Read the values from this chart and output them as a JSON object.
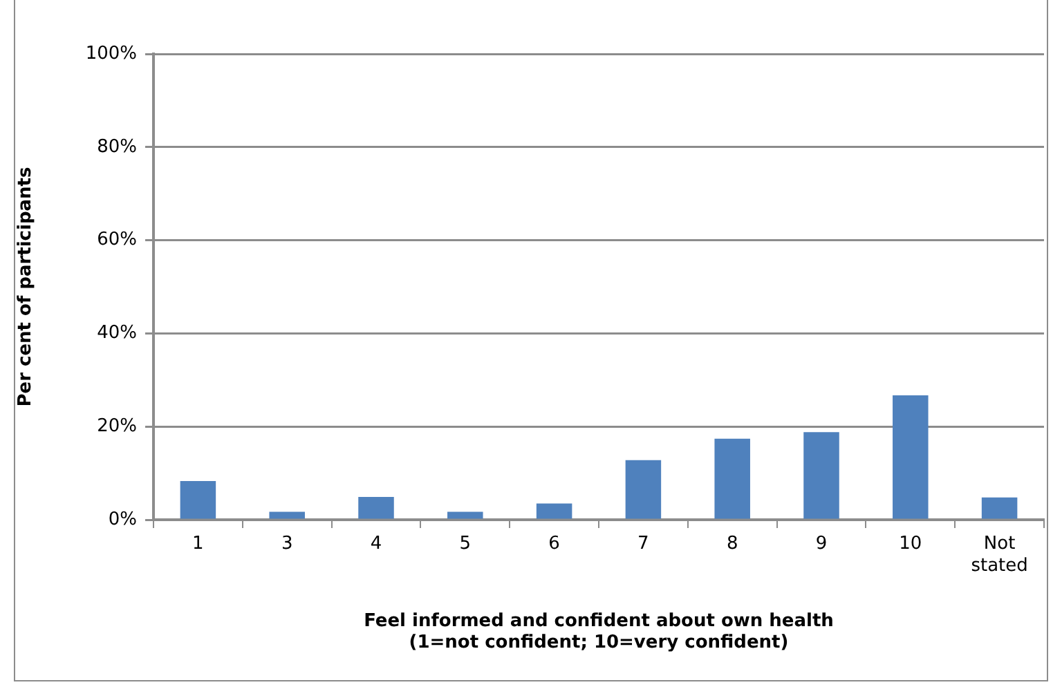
{
  "chart_data": {
    "type": "bar",
    "xlabel": "Feel informed and confident about own health\n(1=not confident; 10=very confident)",
    "ylabel": "Per cent of participants",
    "categories": [
      "1",
      "3",
      "4",
      "5",
      "6",
      "7",
      "8",
      "9",
      "10",
      "Not stated"
    ],
    "values": [
      8.3,
      1.7,
      4.9,
      1.7,
      3.5,
      12.8,
      17.4,
      18.8,
      26.7,
      4.8
    ],
    "color": "#4f81bd",
    "ylim": [
      0,
      100
    ],
    "yticks": [
      {
        "value": 0,
        "label": "0%"
      },
      {
        "value": 20,
        "label": "20%"
      },
      {
        "value": 40,
        "label": "40%"
      },
      {
        "value": 60,
        "label": "60%"
      },
      {
        "value": 80,
        "label": "80%"
      },
      {
        "value": 100,
        "label": "100%"
      }
    ],
    "grid": "y"
  }
}
